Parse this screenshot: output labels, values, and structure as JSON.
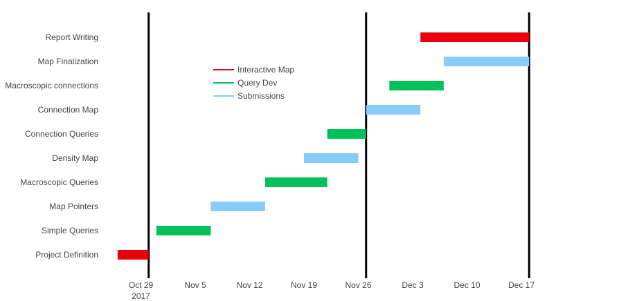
{
  "chart_data": {
    "type": "gantt",
    "title": "",
    "xlabel": "",
    "ylabel": "",
    "x_axis": {
      "type": "date",
      "range": [
        "2017-10-26",
        "2017-12-22"
      ],
      "ticks": [
        {
          "date": "2017-10-29",
          "label": "Oct 29",
          "sublabel": "2017"
        },
        {
          "date": "2017-11-05",
          "label": "Nov 5",
          "sublabel": ""
        },
        {
          "date": "2017-11-12",
          "label": "Nov 12",
          "sublabel": ""
        },
        {
          "date": "2017-11-19",
          "label": "Nov 19",
          "sublabel": ""
        },
        {
          "date": "2017-11-26",
          "label": "Nov 26",
          "sublabel": ""
        },
        {
          "date": "2017-12-03",
          "label": "Dec 3",
          "sublabel": ""
        },
        {
          "date": "2017-12-10",
          "label": "Dec 10",
          "sublabel": ""
        },
        {
          "date": "2017-12-17",
          "label": "Dec 17",
          "sublabel": ""
        }
      ]
    },
    "milestones": [
      "2017-10-30",
      "2017-11-27",
      "2017-12-18"
    ],
    "categories": [
      "Project Definition",
      "Simple Queries",
      "Map Pointers",
      "Macroscopic Queries",
      "Density Map",
      "Connection Queries",
      "Connection Map",
      "Macroscopic connections",
      "Map Finalization",
      "Report Writing"
    ],
    "tasks": [
      {
        "name": "Project Definition",
        "start": "2017-10-26",
        "end": "2017-10-30",
        "series": "Interactive Map"
      },
      {
        "name": "Simple Queries",
        "start": "2017-10-31",
        "end": "2017-11-07",
        "series": "Query Dev"
      },
      {
        "name": "Map Pointers",
        "start": "2017-11-07",
        "end": "2017-11-14",
        "series": "Submissions"
      },
      {
        "name": "Macroscopic Queries",
        "start": "2017-11-14",
        "end": "2017-11-22",
        "series": "Query Dev"
      },
      {
        "name": "Density Map",
        "start": "2017-11-19",
        "end": "2017-11-26",
        "series": "Submissions"
      },
      {
        "name": "Connection Queries",
        "start": "2017-11-22",
        "end": "2017-11-27",
        "series": "Query Dev"
      },
      {
        "name": "Connection Map",
        "start": "2017-11-27",
        "end": "2017-12-04",
        "series": "Submissions"
      },
      {
        "name": "Macroscopic connections",
        "start": "2017-11-30",
        "end": "2017-12-07",
        "series": "Query Dev"
      },
      {
        "name": "Map Finalization",
        "start": "2017-12-07",
        "end": "2017-12-18",
        "series": "Submissions"
      },
      {
        "name": "Report Writing",
        "start": "2017-12-04",
        "end": "2017-12-18",
        "series": "Interactive Map"
      }
    ],
    "legend": {
      "placement": "upper-center",
      "entries": [
        {
          "name": "Interactive Map",
          "color": "#e8000b"
        },
        {
          "name": "Query Dev",
          "color": "#00c05a"
        },
        {
          "name": "Submissions",
          "color": "#87ccfa"
        }
      ]
    },
    "grid": false
  }
}
